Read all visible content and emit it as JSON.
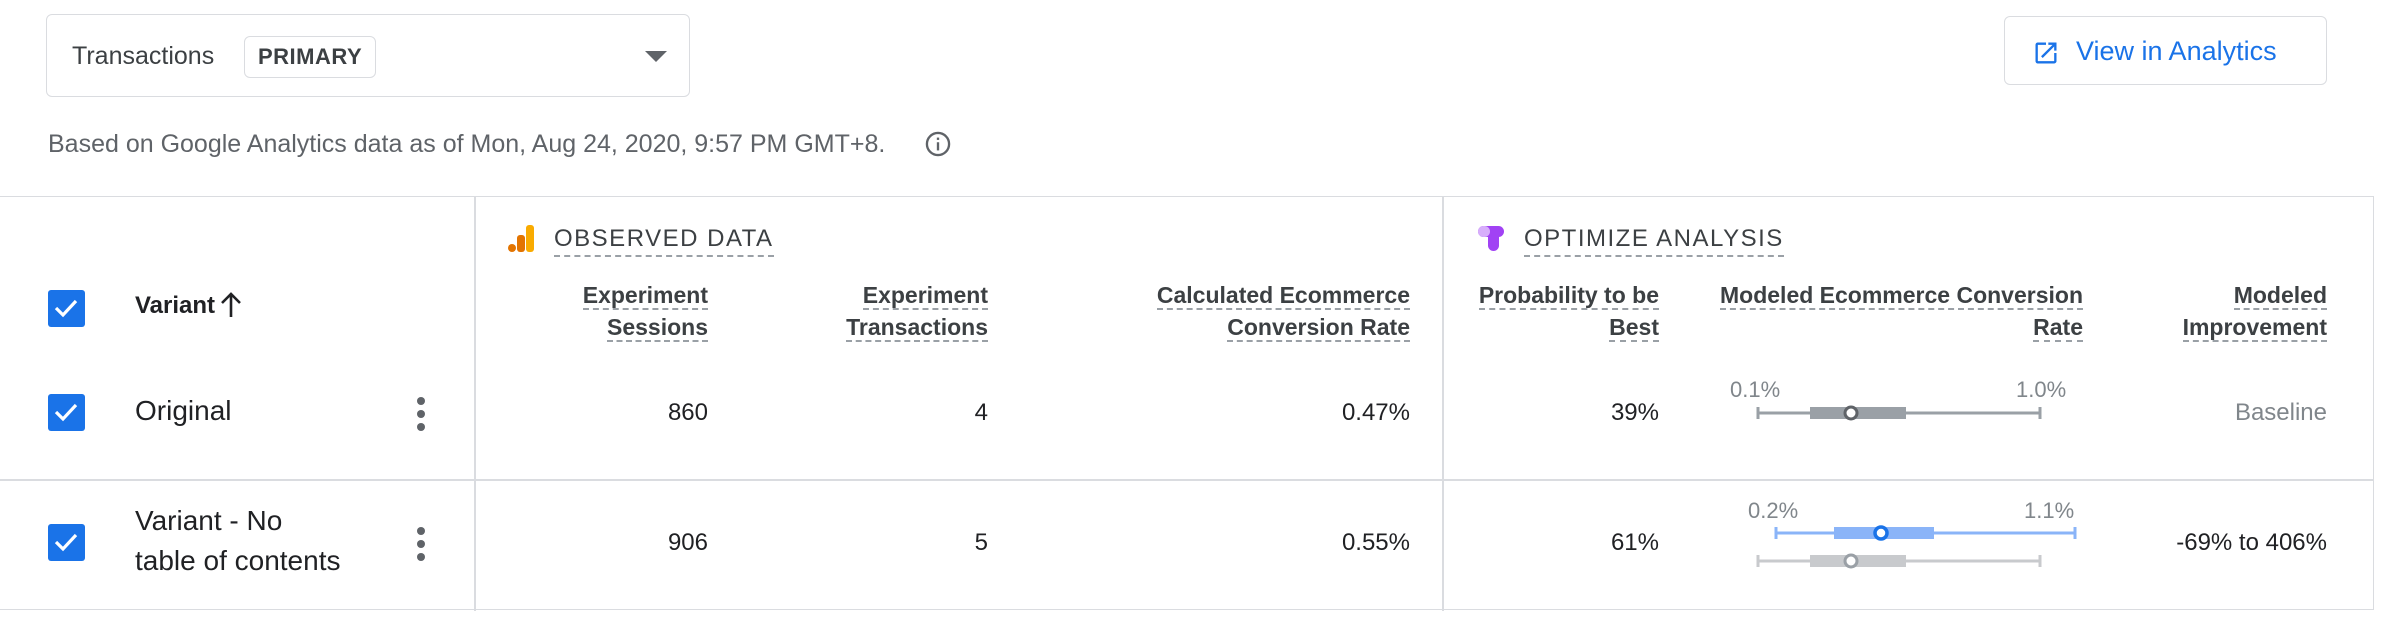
{
  "objective": {
    "label": "Transactions",
    "chip": "PRIMARY"
  },
  "analytics_button": {
    "label": "View in Analytics"
  },
  "data_note": "Based on Google Analytics data as of Mon, Aug 24, 2020, 9:57 PM GMT+8.",
  "sections": {
    "observed": "OBSERVED DATA",
    "optimize": "OPTIMIZE ANALYSIS"
  },
  "columns": {
    "variant": "Variant",
    "sessions_l1": "Experiment",
    "sessions_l2": "Sessions",
    "transactions_l1": "Experiment",
    "transactions_l2": "Transactions",
    "calc_rate_l1": "Calculated Ecommerce",
    "calc_rate_l2": "Conversion Rate",
    "prob_l1": "Probability to be",
    "prob_l2": "Best",
    "modeled_rate_l1": "Modeled Ecommerce Conversion",
    "modeled_rate_l2": "Rate",
    "improvement_l1": "Modeled",
    "improvement_l2": "Improvement"
  },
  "rows": [
    {
      "name_l1": "Original",
      "name_l2": "",
      "sessions": "860",
      "transactions": "4",
      "calc_rate": "0.47%",
      "probability": "39%",
      "ci_low": "0.1%",
      "ci_high": "1.0%",
      "improvement": "Baseline"
    },
    {
      "name_l1": "Variant - No",
      "name_l2": "table of contents",
      "sessions": "906",
      "transactions": "5",
      "calc_rate": "0.55%",
      "probability": "61%",
      "ci_low": "0.2%",
      "ci_high": "1.1%",
      "improvement": "-69% to 406%"
    }
  ],
  "colors": {
    "accent": "#1a73e8",
    "baseline_bar": "#9aa0a6",
    "variant_bar": "#8ab4f8",
    "analytics_orange": "#f9ab00",
    "optimize_purple": "#a142f4"
  }
}
